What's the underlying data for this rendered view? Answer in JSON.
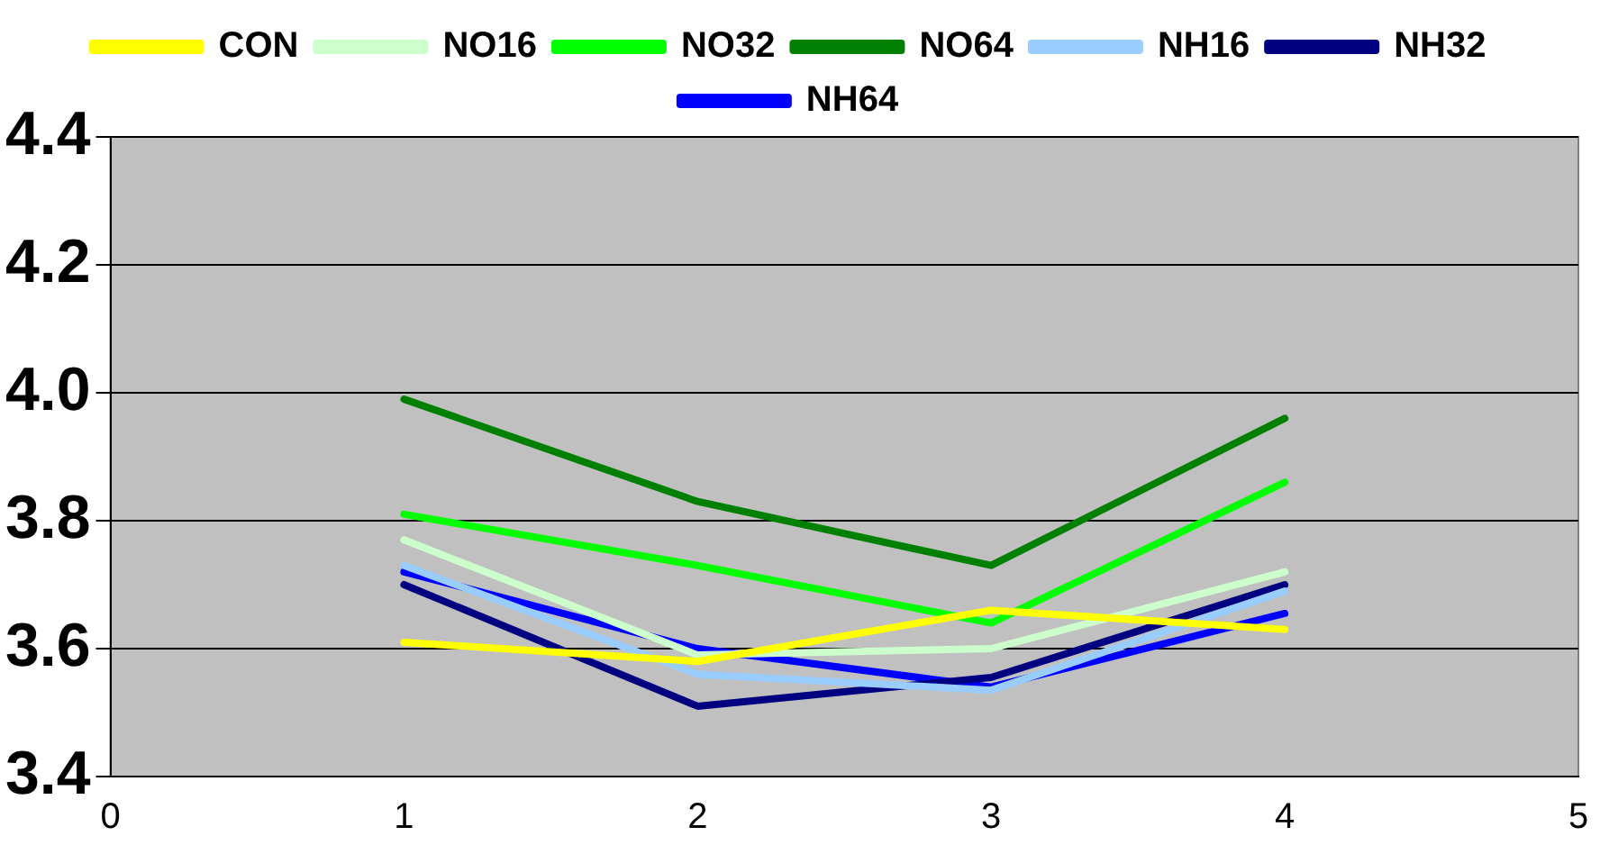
{
  "chart_data": {
    "type": "line",
    "x": [
      1,
      2,
      3,
      4
    ],
    "series": [
      {
        "name": "CON",
        "color": "#ffff00",
        "values": [
          3.61,
          3.58,
          3.66,
          3.63
        ]
      },
      {
        "name": "NO16",
        "color": "#ccffcc",
        "values": [
          3.77,
          3.59,
          3.6,
          3.72
        ]
      },
      {
        "name": "NO32",
        "color": "#00ff00",
        "values": [
          3.81,
          3.73,
          3.64,
          3.86
        ]
      },
      {
        "name": "NO64",
        "color": "#008000",
        "values": [
          3.99,
          3.83,
          3.73,
          3.96
        ]
      },
      {
        "name": "NH16",
        "color": "#99ccff",
        "values": [
          3.73,
          3.56,
          3.535,
          3.69
        ]
      },
      {
        "name": "NH32",
        "color": "#000080",
        "values": [
          3.7,
          3.51,
          3.555,
          3.7
        ]
      },
      {
        "name": "NH64",
        "color": "#0000ff",
        "values": [
          3.72,
          3.6,
          3.54,
          3.655
        ]
      }
    ],
    "xlim": [
      0,
      5
    ],
    "xticks": [
      0,
      1,
      2,
      3,
      4,
      5
    ],
    "ylim": [
      3.4,
      4.4
    ],
    "yticks": [
      3.4,
      3.6,
      3.8,
      {
        "value": 4,
        "label": "4.0"
      },
      4.2,
      4.4
    ],
    "grid": "y",
    "legend": "top",
    "marker": "none",
    "line_style": "solid"
  }
}
